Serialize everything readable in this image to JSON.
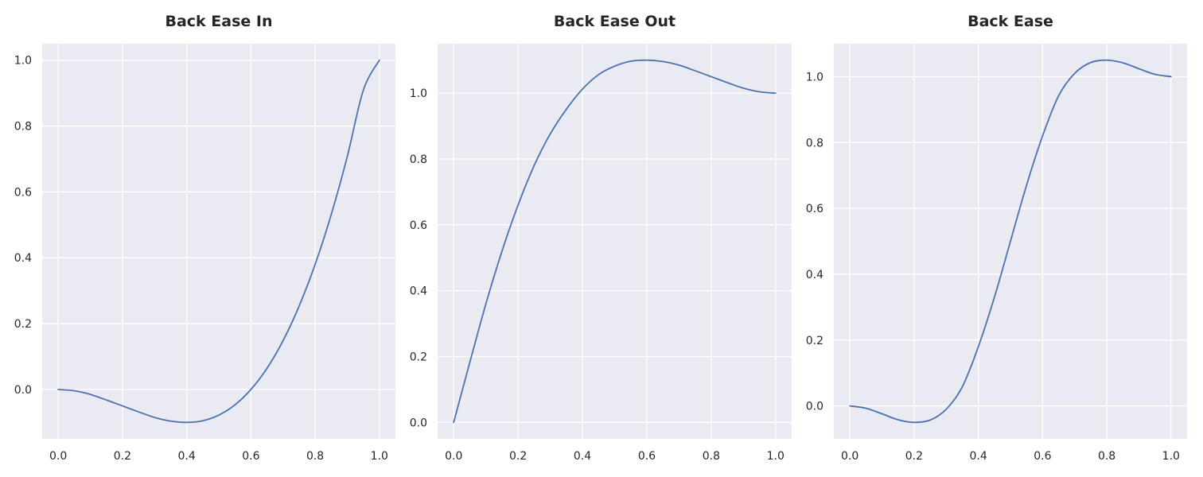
{
  "colors": {
    "line": "#4c72b0",
    "plot_background": "#eaeaf2",
    "grid": "#ffffff",
    "text": "#262626"
  },
  "chart_data": [
    {
      "type": "line",
      "title": "Back Ease In",
      "xlabel": "",
      "ylabel": "",
      "grid": true,
      "xlim": [
        -0.05,
        1.05
      ],
      "ylim": [
        -0.15,
        1.05
      ],
      "xticks": [
        "0.0",
        "0.2",
        "0.4",
        "0.6",
        "0.8",
        "1.0"
      ],
      "yticks": [
        "0.0",
        "0.2",
        "0.4",
        "0.6",
        "0.8",
        "1.0"
      ],
      "x": [
        0.0,
        0.05,
        0.1,
        0.15,
        0.2,
        0.25,
        0.3,
        0.35,
        0.4,
        0.45,
        0.5,
        0.55,
        0.6,
        0.65,
        0.7,
        0.75,
        0.8,
        0.85,
        0.9,
        0.95,
        1.0
      ],
      "y": [
        0.0,
        -0.004,
        -0.015,
        -0.032,
        -0.05,
        -0.068,
        -0.085,
        -0.096,
        -0.1,
        -0.095,
        -0.078,
        -0.047,
        0.0,
        0.064,
        0.148,
        0.253,
        0.38,
        0.531,
        0.707,
        0.909,
        1.0
      ]
    },
    {
      "type": "line",
      "title": "Back Ease Out",
      "xlabel": "",
      "ylabel": "",
      "grid": true,
      "xlim": [
        -0.05,
        1.05
      ],
      "ylim": [
        -0.05,
        1.15
      ],
      "xticks": [
        "0.0",
        "0.2",
        "0.4",
        "0.6",
        "0.8",
        "1.0"
      ],
      "yticks": [
        "0.0",
        "0.2",
        "0.4",
        "0.6",
        "0.8",
        "1.0"
      ],
      "x": [
        0.0,
        0.05,
        0.1,
        0.15,
        0.2,
        0.25,
        0.3,
        0.35,
        0.4,
        0.45,
        0.5,
        0.55,
        0.6,
        0.65,
        0.7,
        0.75,
        0.8,
        0.85,
        0.9,
        0.95,
        1.0
      ],
      "y": [
        0.0,
        0.182,
        0.36,
        0.52,
        0.66,
        0.78,
        0.876,
        0.951,
        1.012,
        1.056,
        1.082,
        1.097,
        1.1,
        1.096,
        1.085,
        1.068,
        1.05,
        1.032,
        1.015,
        1.004,
        1.0
      ]
    },
    {
      "type": "line",
      "title": "Back Ease",
      "xlabel": "",
      "ylabel": "",
      "grid": true,
      "xlim": [
        -0.05,
        1.05
      ],
      "ylim": [
        -0.1,
        1.1
      ],
      "xticks": [
        "0.0",
        "0.2",
        "0.4",
        "0.6",
        "0.8",
        "1.0"
      ],
      "yticks": [
        "0.0",
        "0.2",
        "0.4",
        "0.6",
        "0.8",
        "1.0"
      ],
      "x": [
        0.0,
        0.05,
        0.1,
        0.15,
        0.2,
        0.25,
        0.3,
        0.35,
        0.4,
        0.45,
        0.5,
        0.55,
        0.6,
        0.65,
        0.7,
        0.75,
        0.8,
        0.85,
        0.9,
        0.95,
        1.0
      ],
      "y": [
        0.0,
        -0.007,
        -0.024,
        -0.042,
        -0.05,
        -0.043,
        -0.01,
        0.058,
        0.18,
        0.33,
        0.5,
        0.67,
        0.82,
        0.942,
        1.01,
        1.043,
        1.05,
        1.042,
        1.024,
        1.007,
        1.0
      ]
    }
  ]
}
